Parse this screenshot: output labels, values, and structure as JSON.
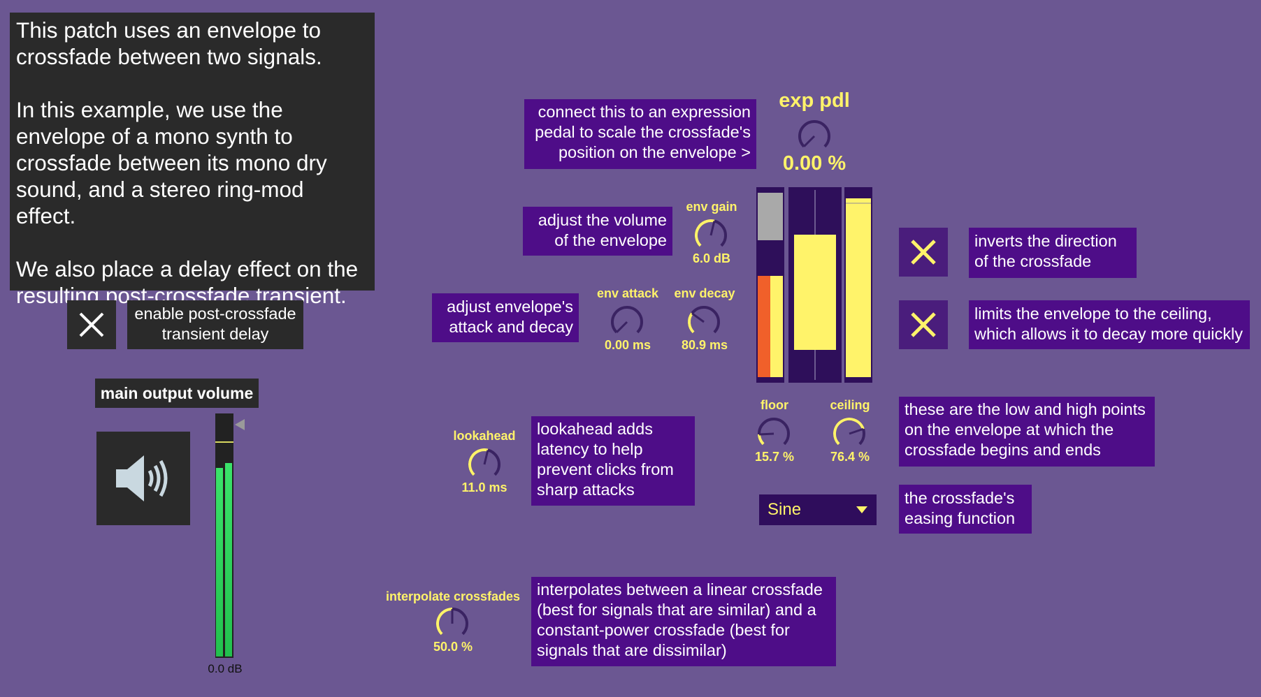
{
  "intro": {
    "paragraphs": [
      "This patch uses an envelope to crossfade between two signals.",
      "In this example, we use the envelope of a mono synth to crossfade between its mono dry sound, and a stereo ring-mod effect.",
      "We also place a delay effect on the resulting post-crossfade transient."
    ]
  },
  "delay_toggle": {
    "icon": "x-icon",
    "state": "on",
    "label": "enable post-crossfade transient delay"
  },
  "main_output": {
    "label": "main output volume",
    "speaker_icon": "speaker-icon",
    "meter_value": "0.0 dB",
    "level_left": 0.78,
    "level_right": 0.8
  },
  "expression": {
    "note": "connect this to an expression pedal to scale the crossfade's position on the envelope >",
    "title": "exp pdl",
    "value": "0.00 %",
    "knob_level": 0.0
  },
  "env_gain": {
    "note": "adjust the volume of the envelope",
    "label": "env gain",
    "value": "6.0 dB",
    "knob_level": 0.55
  },
  "env_attack": {
    "label": "env attack",
    "value": "0.00 ms",
    "knob_level": 0.0
  },
  "env_decay": {
    "label": "env decay",
    "value": "80.9 ms",
    "knob_level": 0.3
  },
  "attack_decay_note": "adjust envelope's attack and decay",
  "lookahead": {
    "label": "lookahead",
    "value": "11.0 ms",
    "knob_level": 0.55,
    "note": "lookahead adds latency to help prevent clicks from sharp attacks"
  },
  "interpolate": {
    "label": "interpolate crossfades",
    "value": "50.0 %",
    "knob_level": 0.5,
    "note": "interpolates between a linear crossfade (best for signals that are similar) and a constant-power crossfade (best for signals that are dissimilar)"
  },
  "envelope_meters": {
    "input_level": 0.74,
    "window_low": 0.157,
    "window_high": 0.764,
    "output_level": 0.97
  },
  "floor": {
    "label": "floor",
    "value": "15.7 %",
    "knob_level": 0.157
  },
  "ceiling": {
    "label": "ceiling",
    "value": "76.4 %",
    "knob_level": 0.764
  },
  "floor_ceiling_note": "these are the low and high points on the envelope at which the crossfade begins and ends",
  "invert": {
    "icon": "x-icon",
    "state": "on",
    "note": "inverts the direction of the crossfade"
  },
  "limit": {
    "icon": "x-icon",
    "state": "on",
    "note": "limits the envelope to the ceiling, which allows it to decay more quickly"
  },
  "easing": {
    "selected": "Sine",
    "arrow_icon": "triangle-down-icon",
    "note": "the crossfade's easing function"
  },
  "colors": {
    "background": "#6b5792",
    "note_box": "#4e0d88",
    "accent_yellow": "#fff36a",
    "meter_green": "#3be36a",
    "meter_orange": "#f0602a"
  }
}
